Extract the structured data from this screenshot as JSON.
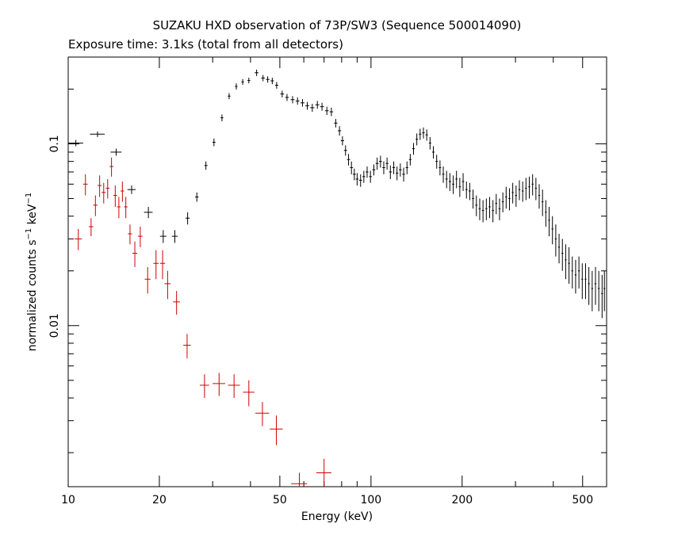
{
  "chart_data": {
    "type": "scatter",
    "title": "SUZAKU HXD observation of 73P/SW3 (Sequence 500014090)",
    "subtitle": "Exposure time: 3.1ks (total from all detectors)",
    "xlabel": "Energy (keV)",
    "ylabel_main": "normalized counts s",
    "ylabel_sup1": "−1",
    "ylabel_mid": " keV",
    "ylabel_sup2": "−1",
    "xscale": "log",
    "yscale": "log",
    "xlim": [
      10,
      600
    ],
    "ylim": [
      0.0013,
      0.3
    ],
    "x_ticks": [
      10,
      20,
      50,
      100,
      200,
      500
    ],
    "x_tick_labels": [
      "10",
      "20",
      "50",
      "100",
      "200",
      "500"
    ],
    "y_ticks": [
      0.01,
      0.1
    ],
    "y_tick_labels": [
      "0.01",
      "0.1"
    ],
    "grid": false,
    "colors": {
      "series_0": "#000000",
      "series_1": "#cc0000"
    },
    "series": [
      {
        "points": [
          [
            10.6,
            0.101,
            0.6,
            0.004
          ],
          [
            12.5,
            0.113,
            0.7,
            0.004
          ],
          [
            14.4,
            0.09,
            0.6,
            0.004
          ],
          [
            16.2,
            0.056,
            0.5,
            0.003
          ],
          [
            18.4,
            0.042,
            0.6,
            0.003
          ],
          [
            20.6,
            0.031,
            0.5,
            0.0025
          ],
          [
            22.5,
            0.031,
            0.5,
            0.0025
          ],
          [
            24.8,
            0.039,
            0.4,
            0.003
          ],
          [
            26.6,
            0.051,
            0.35,
            0.003
          ],
          [
            28.5,
            0.076,
            0.35,
            0.004
          ],
          [
            30.3,
            0.102,
            0.35,
            0.005
          ],
          [
            32.2,
            0.139,
            0.35,
            0.006
          ],
          [
            34.0,
            0.183,
            0.35,
            0.007
          ],
          [
            35.9,
            0.207,
            0.35,
            0.008
          ],
          [
            37.7,
            0.219,
            0.35,
            0.008
          ],
          [
            39.5,
            0.223,
            0.4,
            0.008
          ],
          [
            41.9,
            0.246,
            0.6,
            0.01
          ],
          [
            44.0,
            0.23,
            0.6,
            0.009
          ],
          [
            45.6,
            0.226,
            0.6,
            0.009
          ],
          [
            47.2,
            0.222,
            0.6,
            0.009
          ],
          [
            48.8,
            0.21,
            0.6,
            0.009
          ],
          [
            50.9,
            0.188,
            0.7,
            0.008
          ],
          [
            52.8,
            0.18,
            0.7,
            0.008
          ],
          [
            55.1,
            0.175,
            0.8,
            0.008
          ],
          [
            57.2,
            0.172,
            0.8,
            0.008
          ],
          [
            59.4,
            0.168,
            0.9,
            0.008
          ],
          [
            61.6,
            0.162,
            0.9,
            0.008
          ],
          [
            64.0,
            0.158,
            1.0,
            0.008
          ],
          [
            66.5,
            0.164,
            1.0,
            0.008
          ],
          [
            68.9,
            0.16,
            1.0,
            0.008
          ],
          [
            71.5,
            0.152,
            1.0,
            0.008
          ],
          [
            74.0,
            0.15,
            1.0,
            0.008
          ],
          [
            76.5,
            0.13,
            1.0,
            0.007
          ],
          [
            78.7,
            0.118,
            1.0,
            0.007
          ],
          [
            80.5,
            0.104,
            1.0,
            0.006
          ],
          [
            82.4,
            0.092,
            1.0,
            0.006
          ],
          [
            84.3,
            0.082,
            1.0,
            0.006
          ],
          [
            86.2,
            0.074,
            1.0,
            0.006
          ],
          [
            88.1,
            0.068,
            1.0,
            0.005
          ],
          [
            90.0,
            0.064,
            1.0,
            0.005
          ],
          [
            92.4,
            0.063,
            1.0,
            0.005
          ],
          [
            94.7,
            0.066,
            1.0,
            0.005
          ],
          [
            97.1,
            0.07,
            1.0,
            0.005
          ],
          [
            99.6,
            0.066,
            1.0,
            0.005
          ],
          [
            102.2,
            0.072,
            1.2,
            0.005
          ],
          [
            104.8,
            0.078,
            1.2,
            0.006
          ],
          [
            107.5,
            0.08,
            1.2,
            0.006
          ],
          [
            110.2,
            0.074,
            1.2,
            0.006
          ],
          [
            113.0,
            0.078,
            1.2,
            0.006
          ],
          [
            115.9,
            0.07,
            1.2,
            0.006
          ],
          [
            118.9,
            0.074,
            1.2,
            0.006
          ],
          [
            121.9,
            0.069,
            1.2,
            0.006
          ],
          [
            125.0,
            0.072,
            1.3,
            0.006
          ],
          [
            128.2,
            0.068,
            1.3,
            0.006
          ],
          [
            131.5,
            0.074,
            1.3,
            0.006
          ],
          [
            134.8,
            0.082,
            1.3,
            0.006
          ],
          [
            138.2,
            0.094,
            1.3,
            0.007
          ],
          [
            141.7,
            0.106,
            1.3,
            0.008
          ],
          [
            145.3,
            0.113,
            1.4,
            0.008
          ],
          [
            149.0,
            0.115,
            1.4,
            0.008
          ],
          [
            152.8,
            0.112,
            1.4,
            0.008
          ],
          [
            156.7,
            0.101,
            1.4,
            0.008
          ],
          [
            160.7,
            0.09,
            1.5,
            0.007
          ],
          [
            164.8,
            0.08,
            1.5,
            0.007
          ],
          [
            169.0,
            0.074,
            1.5,
            0.007
          ],
          [
            173.3,
            0.068,
            1.5,
            0.007
          ],
          [
            177.7,
            0.064,
            1.5,
            0.007
          ],
          [
            182.2,
            0.062,
            1.6,
            0.007
          ],
          [
            186.9,
            0.06,
            1.6,
            0.007
          ],
          [
            191.6,
            0.064,
            1.6,
            0.007
          ],
          [
            196.5,
            0.058,
            1.6,
            0.007
          ],
          [
            201.5,
            0.062,
            1.7,
            0.007
          ],
          [
            206.7,
            0.056,
            1.7,
            0.006
          ],
          [
            211.9,
            0.055,
            1.7,
            0.006
          ],
          [
            217.3,
            0.05,
            1.7,
            0.006
          ],
          [
            222.9,
            0.046,
            1.8,
            0.006
          ],
          [
            228.6,
            0.044,
            1.8,
            0.006
          ],
          [
            234.4,
            0.043,
            1.8,
            0.006
          ],
          [
            240.4,
            0.044,
            1.8,
            0.006
          ],
          [
            246.5,
            0.045,
            1.9,
            0.006
          ],
          [
            252.8,
            0.043,
            1.9,
            0.006
          ],
          [
            259.2,
            0.047,
            1.9,
            0.006
          ],
          [
            265.8,
            0.044,
            2.0,
            0.006
          ],
          [
            272.6,
            0.048,
            2.0,
            0.006
          ],
          [
            279.5,
            0.051,
            2.0,
            0.007
          ],
          [
            286.6,
            0.05,
            2.1,
            0.007
          ],
          [
            293.9,
            0.054,
            2.1,
            0.007
          ],
          [
            301.4,
            0.052,
            2.2,
            0.007
          ],
          [
            309.1,
            0.056,
            2.2,
            0.007
          ],
          [
            317.0,
            0.055,
            2.3,
            0.007
          ],
          [
            325.0,
            0.057,
            2.3,
            0.008
          ],
          [
            333.3,
            0.058,
            2.4,
            0.008
          ],
          [
            341.8,
            0.06,
            2.4,
            0.008
          ],
          [
            350.5,
            0.057,
            2.5,
            0.008
          ],
          [
            359.4,
            0.052,
            2.5,
            0.008
          ],
          [
            368.6,
            0.048,
            2.6,
            0.008
          ],
          [
            378.0,
            0.042,
            2.6,
            0.007
          ],
          [
            387.6,
            0.038,
            2.7,
            0.007
          ],
          [
            397.5,
            0.034,
            2.8,
            0.006
          ],
          [
            407.6,
            0.03,
            2.8,
            0.006
          ],
          [
            418.0,
            0.027,
            2.9,
            0.005
          ],
          [
            428.7,
            0.025,
            3.0,
            0.005
          ],
          [
            439.6,
            0.023,
            3.0,
            0.005
          ],
          [
            450.8,
            0.022,
            3.1,
            0.005
          ],
          [
            462.3,
            0.02,
            3.2,
            0.004
          ],
          [
            474.1,
            0.019,
            3.3,
            0.004
          ],
          [
            486.2,
            0.02,
            3.3,
            0.004
          ],
          [
            498.6,
            0.018,
            3.4,
            0.004
          ],
          [
            511.3,
            0.018,
            3.5,
            0.004
          ],
          [
            524.3,
            0.017,
            3.6,
            0.004
          ],
          [
            537.7,
            0.016,
            3.7,
            0.004
          ],
          [
            551.4,
            0.017,
            3.8,
            0.004
          ],
          [
            565.4,
            0.016,
            3.9,
            0.004
          ],
          [
            579.8,
            0.015,
            4.0,
            0.004
          ],
          [
            590.0,
            0.016,
            4.0,
            0.004
          ]
        ]
      },
      {
        "points": [
          [
            10.8,
            0.03,
            0.3,
            0.004
          ],
          [
            11.4,
            0.06,
            0.2,
            0.008
          ],
          [
            11.9,
            0.035,
            0.2,
            0.004
          ],
          [
            12.3,
            0.046,
            0.2,
            0.006
          ],
          [
            12.7,
            0.059,
            0.2,
            0.008
          ],
          [
            13.1,
            0.054,
            0.2,
            0.007
          ],
          [
            13.5,
            0.057,
            0.2,
            0.007
          ],
          [
            13.9,
            0.075,
            0.2,
            0.009
          ],
          [
            14.3,
            0.052,
            0.2,
            0.007
          ],
          [
            14.7,
            0.045,
            0.2,
            0.006
          ],
          [
            15.1,
            0.055,
            0.2,
            0.007
          ],
          [
            15.5,
            0.045,
            0.2,
            0.006
          ],
          [
            16.0,
            0.032,
            0.25,
            0.004
          ],
          [
            16.6,
            0.025,
            0.3,
            0.004
          ],
          [
            17.3,
            0.031,
            0.3,
            0.004
          ],
          [
            18.3,
            0.018,
            0.4,
            0.003
          ],
          [
            19.5,
            0.022,
            0.4,
            0.004
          ],
          [
            20.5,
            0.022,
            0.4,
            0.004
          ],
          [
            21.3,
            0.017,
            0.5,
            0.003
          ],
          [
            22.8,
            0.0135,
            0.6,
            0.002
          ],
          [
            24.7,
            0.0078,
            0.7,
            0.0012
          ],
          [
            28.2,
            0.0047,
            1.0,
            0.0007
          ],
          [
            31.5,
            0.0048,
            1.5,
            0.0007
          ],
          [
            35.3,
            0.0047,
            1.6,
            0.0007
          ],
          [
            39.5,
            0.0043,
            1.7,
            0.0007
          ],
          [
            43.8,
            0.0033,
            2.3,
            0.0005
          ],
          [
            48.7,
            0.0027,
            2.4,
            0.0005
          ],
          [
            58.0,
            0.00135,
            3.5,
            0.0002
          ],
          [
            70.0,
            0.00155,
            4.0,
            0.0003
          ]
        ]
      }
    ]
  }
}
